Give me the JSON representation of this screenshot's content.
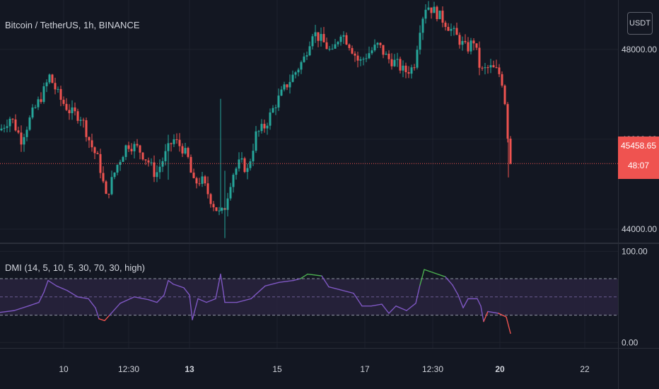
{
  "header": {
    "symbol_title": "Bitcoin / TetherUS, 1h, BINANCE",
    "currency_button": "USDT"
  },
  "indicator": {
    "label": "DMI (14, 5, 10, 5, 30, 70, 30, high)"
  },
  "price_tag": {
    "price": "45458.65",
    "countdown": "48:07"
  },
  "colors": {
    "background": "#131722",
    "up_candle": "#26a69a",
    "down_candle": "#ef5350",
    "dmi_line": "#7e57c2",
    "dmi_high": "#4caf50",
    "dmi_low": "#ef5350",
    "band_fill": "#2a2440"
  },
  "chart_data": [
    {
      "type": "candlestick",
      "title": "Bitcoin / TetherUS, 1h, BINANCE",
      "y_axis_ticks": [
        "48000.00",
        "46000.00",
        "44000.00"
      ],
      "ylim": [
        43700,
        49100
      ],
      "x_tick_labels": [
        "10",
        "12:30",
        "13",
        "15",
        "17",
        "12:30",
        "20",
        "22"
      ],
      "bold_x_ticks": [
        "13",
        "20"
      ],
      "last_price": 45458.65,
      "price_path": [
        [
          0,
          46200
        ],
        [
          15,
          46500
        ],
        [
          30,
          46000
        ],
        [
          45,
          46550
        ],
        [
          60,
          47000
        ],
        [
          70,
          47400
        ],
        [
          85,
          46900
        ],
        [
          100,
          46600
        ],
        [
          115,
          46500
        ],
        [
          128,
          45900
        ],
        [
          140,
          45500
        ],
        [
          150,
          44700
        ],
        [
          165,
          45400
        ],
        [
          180,
          45900
        ],
        [
          195,
          45800
        ],
        [
          210,
          45500
        ],
        [
          220,
          45200
        ],
        [
          232,
          45600
        ],
        [
          245,
          46000
        ],
        [
          258,
          45800
        ],
        [
          268,
          45500
        ],
        [
          272,
          45000
        ],
        [
          285,
          45100
        ],
        [
          300,
          44600
        ],
        [
          312,
          44300
        ],
        [
          318,
          44500
        ],
        [
          328,
          45200
        ],
        [
          340,
          45500
        ],
        [
          350,
          45300
        ],
        [
          362,
          46100
        ],
        [
          375,
          46300
        ],
        [
          390,
          46800
        ],
        [
          405,
          47200
        ],
        [
          418,
          47500
        ],
        [
          430,
          47800
        ],
        [
          442,
          48400
        ],
        [
          455,
          48200
        ],
        [
          470,
          47900
        ],
        [
          482,
          48400
        ],
        [
          495,
          48100
        ],
        [
          508,
          47700
        ],
        [
          520,
          47900
        ],
        [
          535,
          48100
        ],
        [
          548,
          47800
        ],
        [
          560,
          47700
        ],
        [
          572,
          47500
        ],
        [
          585,
          47600
        ],
        [
          595,
          48600
        ],
        [
          603,
          49000
        ],
        [
          618,
          48800
        ],
        [
          630,
          48600
        ],
        [
          645,
          48300
        ],
        [
          660,
          48000
        ],
        [
          670,
          48200
        ],
        [
          680,
          47500
        ],
        [
          692,
          47600
        ],
        [
          705,
          47500
        ],
        [
          712,
          47200
        ],
        [
          716,
          46500
        ],
        [
          719,
          45900
        ],
        [
          722,
          45458.65
        ]
      ]
    },
    {
      "type": "line",
      "title": "DMI (14, 5, 10, 5, 30, 70, 30, high)",
      "y_axis_ticks": [
        "100.00",
        "0.00"
      ],
      "ylim": [
        -6,
        108
      ],
      "levels": [
        30,
        50,
        70
      ],
      "dmi_path": [
        [
          0,
          33
        ],
        [
          20,
          35
        ],
        [
          40,
          40
        ],
        [
          55,
          44
        ],
        [
          62,
          55
        ],
        [
          68,
          68
        ],
        [
          80,
          62
        ],
        [
          95,
          57
        ],
        [
          110,
          50
        ],
        [
          125,
          48
        ],
        [
          135,
          38
        ],
        [
          140,
          26
        ],
        [
          148,
          24
        ],
        [
          155,
          30
        ],
        [
          170,
          43
        ],
        [
          190,
          50
        ],
        [
          210,
          47
        ],
        [
          222,
          44
        ],
        [
          232,
          52
        ],
        [
          238,
          68
        ],
        [
          245,
          64
        ],
        [
          260,
          60
        ],
        [
          268,
          52
        ],
        [
          272,
          25
        ],
        [
          280,
          48
        ],
        [
          292,
          44
        ],
        [
          305,
          48
        ],
        [
          312,
          75
        ],
        [
          318,
          44
        ],
        [
          335,
          44
        ],
        [
          355,
          48
        ],
        [
          375,
          62
        ],
        [
          395,
          66
        ],
        [
          415,
          68
        ],
        [
          425,
          70
        ],
        [
          435,
          75
        ],
        [
          445,
          74
        ],
        [
          455,
          73
        ],
        [
          465,
          61
        ],
        [
          480,
          58
        ],
        [
          500,
          54
        ],
        [
          512,
          40
        ],
        [
          525,
          40
        ],
        [
          540,
          42
        ],
        [
          550,
          32
        ],
        [
          560,
          40
        ],
        [
          575,
          35
        ],
        [
          588,
          43
        ],
        [
          594,
          63
        ],
        [
          600,
          80
        ],
        [
          615,
          76
        ],
        [
          630,
          72
        ],
        [
          640,
          63
        ],
        [
          648,
          52
        ],
        [
          655,
          38
        ],
        [
          662,
          48
        ],
        [
          675,
          48
        ],
        [
          680,
          40
        ],
        [
          684,
          23
        ],
        [
          690,
          34
        ],
        [
          705,
          32
        ],
        [
          716,
          28
        ],
        [
          722,
          10
        ]
      ]
    }
  ]
}
